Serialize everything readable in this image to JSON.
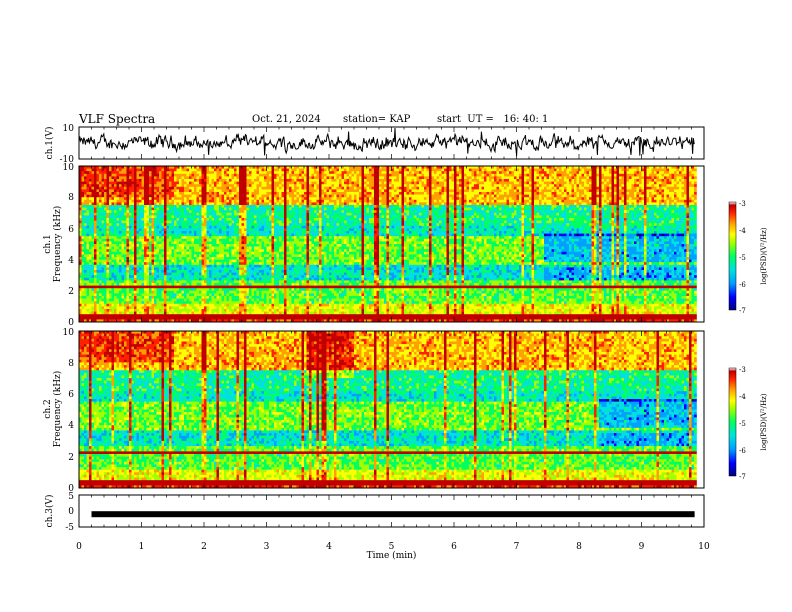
{
  "header": {
    "title": "VLF Spectra",
    "date": "Oct. 21, 2024",
    "station": "station= KAP",
    "start": "start  UT =   16: 40: 1"
  },
  "colors": {
    "trace": "#000000",
    "background": "#ffffff",
    "colormap": [
      "#000080",
      "#0000ff",
      "#00a0ff",
      "#00e0e0",
      "#00ff60",
      "#a0ff00",
      "#ffff00",
      "#ffa000",
      "#ff2000",
      "#c00000",
      "#ffffff"
    ]
  },
  "chart_data": [
    {
      "type": "line",
      "name": "ch1-waveform",
      "ylabel": "ch.1(V)",
      "ylim": [
        -10,
        10
      ],
      "xlim": [
        0,
        10
      ],
      "yticks": [
        "10",
        "-10"
      ],
      "x_extent": [
        0,
        9.85
      ],
      "values_description": "noisy broadband waveform",
      "typical_range": [
        -5,
        5
      ]
    },
    {
      "type": "heatmap",
      "name": "ch1-spectrogram",
      "ylabel_line1": "ch.1",
      "ylabel_line2": "Frequency (kHz)",
      "ylim": [
        0,
        10
      ],
      "yticks": [
        "0",
        "2",
        "4",
        "6",
        "8",
        "10"
      ],
      "xlim": [
        0,
        10
      ],
      "x_extent": [
        0,
        9.85
      ],
      "colorbar": {
        "label": "log(PSD)(V²/Hz)",
        "range": [
          -7,
          -3
        ],
        "ticks": [
          "-3",
          "-4",
          "-5",
          "-6",
          "-7"
        ]
      }
    },
    {
      "type": "heatmap",
      "name": "ch2-spectrogram",
      "ylabel_line1": "ch.2",
      "ylabel_line2": "Frequency (kHz)",
      "ylim": [
        0,
        10
      ],
      "yticks": [
        "0",
        "2",
        "4",
        "6",
        "8",
        "10"
      ],
      "xlim": [
        0,
        10
      ],
      "x_extent": [
        0,
        9.85
      ],
      "colorbar": {
        "label": "log(PSD)(V²/Hz)",
        "range": [
          -7,
          -3
        ],
        "ticks": [
          "-3",
          "-4",
          "-5",
          "-6",
          "-7"
        ]
      }
    },
    {
      "type": "line",
      "name": "ch3-waveform",
      "ylabel": "ch.3(V)",
      "ylim": [
        -5,
        5
      ],
      "xlim": [
        0,
        10
      ],
      "yticks": [
        "5",
        "0",
        "-5"
      ],
      "x_extent": [
        0,
        9.85
      ],
      "level": -1,
      "xlabel": "Time  (min)",
      "xticks": [
        "0",
        "1",
        "2",
        "3",
        "4",
        "5",
        "6",
        "7",
        "8",
        "9",
        "10"
      ]
    }
  ]
}
